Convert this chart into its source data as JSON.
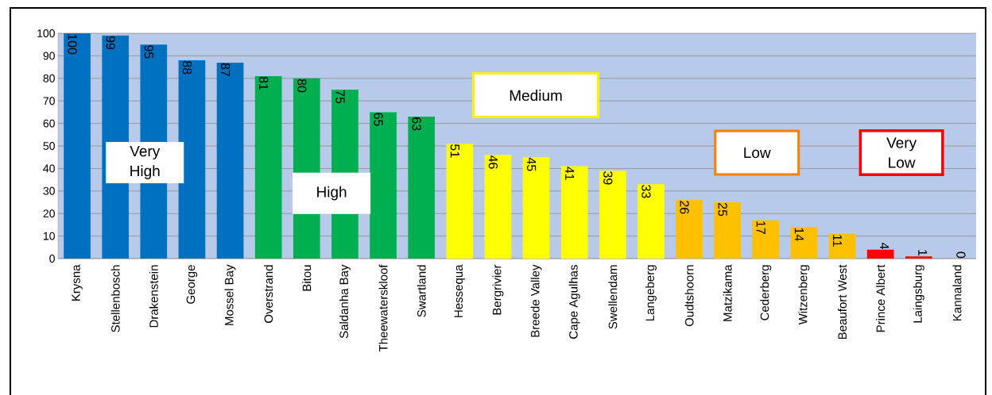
{
  "chart_data": {
    "type": "bar",
    "categories": [
      "Krysna",
      "Stellenbosch",
      "Drakenstein",
      "George",
      "Mossel Bay",
      "Overstrand",
      "Bitou",
      "Saldanha Bay",
      "Theewaterskloof",
      "Swartland",
      "Hessequa",
      "Bergrivier",
      "Breede Valley",
      "Cape Agulhas",
      "Swellendam",
      "Langeberg",
      "Oudtshoorn",
      "Matzikama",
      "Cederberg",
      "Witzenberg",
      "Beaufort West",
      "Prince Albert",
      "Laingsburg",
      "Kannaland"
    ],
    "values": [
      100,
      99,
      95,
      88,
      87,
      81,
      80,
      75,
      65,
      63,
      51,
      46,
      45,
      41,
      39,
      33,
      26,
      25,
      17,
      14,
      11,
      4,
      1,
      0
    ],
    "colors": [
      "#0070c0",
      "#0070c0",
      "#0070c0",
      "#0070c0",
      "#0070c0",
      "#00b050",
      "#00b050",
      "#00b050",
      "#00b050",
      "#00b050",
      "#ffff00",
      "#ffff00",
      "#ffff00",
      "#ffff00",
      "#ffff00",
      "#ffff00",
      "#ffc000",
      "#ffc000",
      "#ffc000",
      "#ffc000",
      "#ffc000",
      "#ff0000",
      "#ff0000",
      "#ff0000"
    ],
    "ylim": [
      0,
      100
    ],
    "yticks": [
      0,
      10,
      20,
      30,
      40,
      50,
      60,
      70,
      80,
      90,
      100
    ],
    "grid": "y",
    "data_labels": true,
    "annotations": [
      "Very\nHigh",
      "High",
      "Medium",
      "Low",
      "Very\nLow"
    ]
  }
}
